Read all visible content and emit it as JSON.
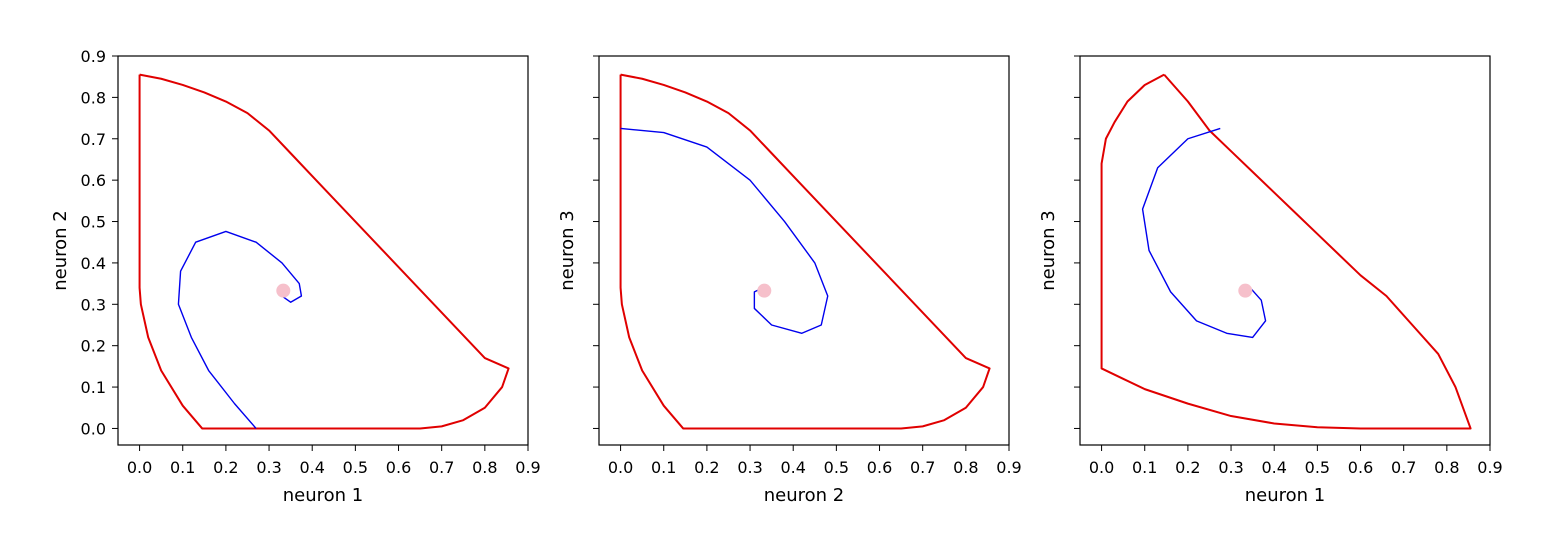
{
  "colors": {
    "boundary": "#e00000",
    "trajectory": "#0000ee",
    "fixed_point": "#f6c0cb",
    "axes": "#000000",
    "background": "#ffffff"
  },
  "chart_data": [
    {
      "type": "line",
      "xlabel": "neuron 1",
      "ylabel": "neuron 2",
      "xlim": [
        -0.05,
        0.9
      ],
      "ylim": [
        -0.04,
        0.9
      ],
      "xticks": [
        "0.0",
        "0.1",
        "0.2",
        "0.3",
        "0.4",
        "0.5",
        "0.6",
        "0.7",
        "0.8",
        "0.9"
      ],
      "yticks": [
        "0.0",
        "0.1",
        "0.2",
        "0.3",
        "0.4",
        "0.5",
        "0.6",
        "0.7",
        "0.8",
        "0.9"
      ],
      "show_y_tick_labels": true,
      "grid": false,
      "series": [
        {
          "role": "boundary",
          "points": [
            [
              0.0,
              0.855
            ],
            [
              0.05,
              0.845
            ],
            [
              0.1,
              0.83
            ],
            [
              0.15,
              0.812
            ],
            [
              0.2,
              0.79
            ],
            [
              0.25,
              0.762
            ],
            [
              0.3,
              0.72
            ],
            [
              0.35,
              0.665
            ],
            [
              0.4,
              0.61
            ],
            [
              0.45,
              0.555
            ],
            [
              0.5,
              0.5
            ],
            [
              0.55,
              0.445
            ],
            [
              0.6,
              0.39
            ],
            [
              0.65,
              0.335
            ],
            [
              0.7,
              0.28
            ],
            [
              0.75,
              0.225
            ],
            [
              0.8,
              0.17
            ],
            [
              0.855,
              0.145
            ],
            [
              0.84,
              0.1
            ],
            [
              0.8,
              0.05
            ],
            [
              0.75,
              0.02
            ],
            [
              0.7,
              0.005
            ],
            [
              0.65,
              0.0
            ],
            [
              0.5,
              0.0
            ],
            [
              0.3,
              0.0
            ],
            [
              0.145,
              0.0
            ],
            [
              0.1,
              0.055
            ],
            [
              0.05,
              0.14
            ],
            [
              0.02,
              0.22
            ],
            [
              0.003,
              0.3
            ],
            [
              0.0,
              0.34
            ],
            [
              0.0,
              0.5
            ],
            [
              0.0,
              0.7
            ],
            [
              0.0,
              0.855
            ]
          ]
        },
        {
          "role": "trajectory",
          "points": [
            [
              0.27,
              0.0
            ],
            [
              0.22,
              0.06
            ],
            [
              0.16,
              0.14
            ],
            [
              0.12,
              0.22
            ],
            [
              0.09,
              0.3
            ],
            [
              0.095,
              0.38
            ],
            [
              0.13,
              0.45
            ],
            [
              0.2,
              0.476
            ],
            [
              0.27,
              0.45
            ],
            [
              0.33,
              0.4
            ],
            [
              0.37,
              0.35
            ],
            [
              0.375,
              0.32
            ],
            [
              0.35,
              0.305
            ],
            [
              0.33,
              0.32
            ]
          ]
        }
      ],
      "fixed_point": [
        0.333,
        0.333
      ]
    },
    {
      "type": "line",
      "xlabel": "neuron 2",
      "ylabel": "neuron 3",
      "xlim": [
        -0.05,
        0.9
      ],
      "ylim": [
        -0.04,
        0.9
      ],
      "xticks": [
        "0.0",
        "0.1",
        "0.2",
        "0.3",
        "0.4",
        "0.5",
        "0.6",
        "0.7",
        "0.8",
        "0.9"
      ],
      "yticks": [
        "0.0",
        "0.1",
        "0.2",
        "0.3",
        "0.4",
        "0.5",
        "0.6",
        "0.7",
        "0.8",
        "0.9"
      ],
      "show_y_tick_labels": false,
      "grid": false,
      "series": [
        {
          "role": "boundary",
          "points": [
            [
              0.0,
              0.855
            ],
            [
              0.05,
              0.845
            ],
            [
              0.1,
              0.83
            ],
            [
              0.15,
              0.812
            ],
            [
              0.2,
              0.79
            ],
            [
              0.25,
              0.762
            ],
            [
              0.3,
              0.72
            ],
            [
              0.35,
              0.665
            ],
            [
              0.4,
              0.61
            ],
            [
              0.45,
              0.555
            ],
            [
              0.5,
              0.5
            ],
            [
              0.55,
              0.445
            ],
            [
              0.6,
              0.39
            ],
            [
              0.65,
              0.335
            ],
            [
              0.7,
              0.28
            ],
            [
              0.75,
              0.225
            ],
            [
              0.8,
              0.17
            ],
            [
              0.855,
              0.145
            ],
            [
              0.84,
              0.1
            ],
            [
              0.8,
              0.05
            ],
            [
              0.75,
              0.02
            ],
            [
              0.7,
              0.005
            ],
            [
              0.65,
              0.0
            ],
            [
              0.5,
              0.0
            ],
            [
              0.3,
              0.0
            ],
            [
              0.145,
              0.0
            ],
            [
              0.1,
              0.055
            ],
            [
              0.05,
              0.14
            ],
            [
              0.02,
              0.22
            ],
            [
              0.003,
              0.3
            ],
            [
              0.0,
              0.34
            ],
            [
              0.0,
              0.5
            ],
            [
              0.0,
              0.7
            ],
            [
              0.0,
              0.855
            ]
          ]
        },
        {
          "role": "trajectory",
          "points": [
            [
              0.0,
              0.725
            ],
            [
              0.1,
              0.715
            ],
            [
              0.2,
              0.68
            ],
            [
              0.3,
              0.6
            ],
            [
              0.38,
              0.5
            ],
            [
              0.45,
              0.4
            ],
            [
              0.48,
              0.32
            ],
            [
              0.465,
              0.25
            ],
            [
              0.42,
              0.23
            ],
            [
              0.35,
              0.25
            ],
            [
              0.31,
              0.29
            ],
            [
              0.31,
              0.33
            ],
            [
              0.33,
              0.34
            ]
          ]
        }
      ],
      "fixed_point": [
        0.333,
        0.333
      ]
    },
    {
      "type": "line",
      "xlabel": "neuron 1",
      "ylabel": "neuron 3",
      "xlim": [
        -0.05,
        0.9
      ],
      "ylim": [
        -0.04,
        0.9
      ],
      "xticks": [
        "0.0",
        "0.1",
        "0.2",
        "0.3",
        "0.4",
        "0.5",
        "0.6",
        "0.7",
        "0.8",
        "0.9"
      ],
      "yticks": [
        "0.0",
        "0.1",
        "0.2",
        "0.3",
        "0.4",
        "0.5",
        "0.6",
        "0.7",
        "0.8",
        "0.9"
      ],
      "show_y_tick_labels": false,
      "grid": false,
      "series": [
        {
          "role": "boundary",
          "points": [
            [
              0.145,
              0.855
            ],
            [
              0.1,
              0.83
            ],
            [
              0.06,
              0.79
            ],
            [
              0.03,
              0.74
            ],
            [
              0.01,
              0.7
            ],
            [
              0.0,
              0.64
            ],
            [
              0.0,
              0.5
            ],
            [
              0.0,
              0.3
            ],
            [
              0.0,
              0.145
            ],
            [
              0.05,
              0.12
            ],
            [
              0.1,
              0.095
            ],
            [
              0.2,
              0.06
            ],
            [
              0.3,
              0.03
            ],
            [
              0.4,
              0.012
            ],
            [
              0.5,
              0.003
            ],
            [
              0.6,
              0.0
            ],
            [
              0.7,
              0.0
            ],
            [
              0.855,
              0.0
            ],
            [
              0.82,
              0.1
            ],
            [
              0.78,
              0.18
            ],
            [
              0.72,
              0.25
            ],
            [
              0.66,
              0.32
            ],
            [
              0.6,
              0.37
            ],
            [
              0.55,
              0.42
            ],
            [
              0.5,
              0.47
            ],
            [
              0.45,
              0.52
            ],
            [
              0.4,
              0.57
            ],
            [
              0.35,
              0.62
            ],
            [
              0.3,
              0.67
            ],
            [
              0.25,
              0.72
            ],
            [
              0.2,
              0.79
            ],
            [
              0.145,
              0.855
            ]
          ]
        },
        {
          "role": "trajectory",
          "points": [
            [
              0.275,
              0.725
            ],
            [
              0.2,
              0.7
            ],
            [
              0.13,
              0.63
            ],
            [
              0.095,
              0.53
            ],
            [
              0.11,
              0.43
            ],
            [
              0.16,
              0.33
            ],
            [
              0.22,
              0.26
            ],
            [
              0.29,
              0.23
            ],
            [
              0.35,
              0.22
            ],
            [
              0.38,
              0.26
            ],
            [
              0.37,
              0.31
            ],
            [
              0.34,
              0.345
            ],
            [
              0.32,
              0.34
            ]
          ]
        }
      ],
      "fixed_point": [
        0.333,
        0.333
      ]
    }
  ]
}
